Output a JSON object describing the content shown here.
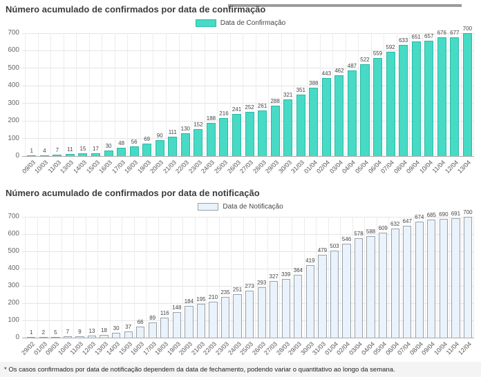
{
  "page": {
    "footnote": "* Os casos confirmados por data de notificação dependem da data de fechamento, podendo variar o quantitativo ao longo da semana."
  },
  "chart_data": [
    {
      "type": "bar",
      "title": "Número acumulado de confirmados por data de confirmação",
      "legend": "Data de Confirmação",
      "bar_color": "#47DAC5",
      "bar_border": "#2BB9A7",
      "ylim": [
        0,
        700
      ],
      "yticks": [
        0,
        100,
        200,
        300,
        400,
        500,
        600,
        700
      ],
      "grid": true,
      "legend_position": "top-center",
      "categories": [
        "09/03",
        "10/03",
        "11/03",
        "13/03",
        "14/03",
        "15/03",
        "16/03",
        "17/03",
        "18/03",
        "19/03",
        "20/03",
        "21/03",
        "22/03",
        "23/03",
        "24/03",
        "25/03",
        "26/03",
        "27/03",
        "28/03",
        "29/03",
        "30/03",
        "31/03",
        "01/04",
        "02/04",
        "03/04",
        "04/04",
        "05/04",
        "06/04",
        "07/04",
        "08/04",
        "09/04",
        "10/04",
        "11/04",
        "12/04",
        "13/04"
      ],
      "values": [
        1,
        4,
        7,
        11,
        15,
        17,
        30,
        48,
        56,
        69,
        90,
        111,
        130,
        152,
        188,
        216,
        241,
        252,
        261,
        288,
        321,
        351,
        388,
        443,
        462,
        487,
        522,
        559,
        592,
        633,
        651,
        657,
        676,
        677,
        700
      ]
    },
    {
      "type": "bar",
      "title": "Número acumulado de confirmados por data de notificação",
      "legend": "Data de Notificação",
      "bar_color": "#EAF2FB",
      "bar_border": "#97A1A9",
      "ylim": [
        0,
        700
      ],
      "yticks": [
        0,
        100,
        200,
        300,
        400,
        500,
        600,
        700
      ],
      "grid": true,
      "legend_position": "top-center",
      "categories": [
        "29/02",
        "01/03",
        "09/03",
        "10/03",
        "11/03",
        "12/03",
        "13/03",
        "14/03",
        "15/03",
        "16/03",
        "17/03",
        "18/03",
        "19/03",
        "20/03",
        "21/03",
        "22/03",
        "23/03",
        "24/03",
        "25/03",
        "26/03",
        "27/03",
        "28/03",
        "29/03",
        "30/03",
        "31/03",
        "01/04",
        "02/04",
        "03/04",
        "04/04",
        "05/04",
        "06/04",
        "07/04",
        "08/04",
        "09/04",
        "10/04",
        "11/04",
        "12/04"
      ],
      "values": [
        1,
        2,
        5,
        7,
        9,
        13,
        18,
        30,
        37,
        66,
        89,
        116,
        148,
        184,
        195,
        210,
        235,
        251,
        273,
        293,
        327,
        339,
        364,
        419,
        479,
        503,
        546,
        578,
        588,
        609,
        632,
        647,
        674,
        685,
        690,
        691,
        700
      ]
    }
  ]
}
